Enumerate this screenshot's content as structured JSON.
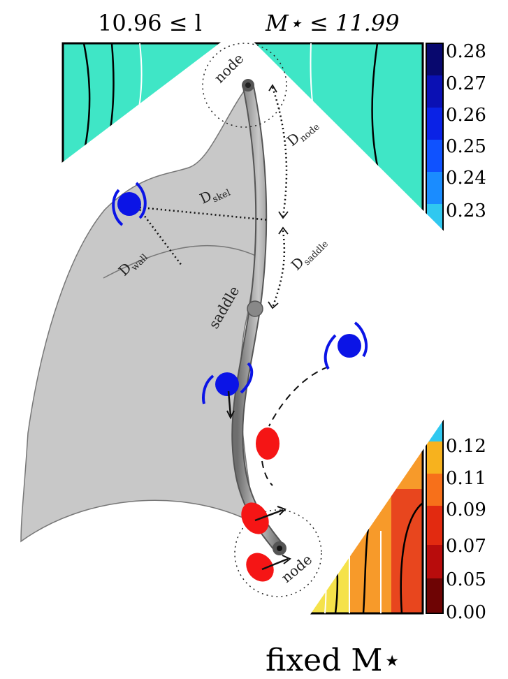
{
  "figure": {
    "title_left": "10.96 ≤ l",
    "title_right": "M⋆ ≤ 11.99",
    "colorbar_labels": [
      "0.28",
      "0.27",
      "0.26",
      "0.25",
      "0.24",
      "0.23",
      "0.12",
      "0.11",
      "0.09",
      "0.07",
      "0.05",
      "0.00"
    ],
    "caption": "fixed M⋆"
  },
  "diagram": {
    "node_top": "node",
    "node_bottom": "node",
    "saddle": "saddle",
    "d_node": {
      "main": "D",
      "sub": "node"
    },
    "d_skel": {
      "main": "D",
      "sub": "skel"
    },
    "d_wall": {
      "main": "D",
      "sub": "wall"
    },
    "d_saddle": {
      "main": "D",
      "sub": "saddle"
    }
  }
}
